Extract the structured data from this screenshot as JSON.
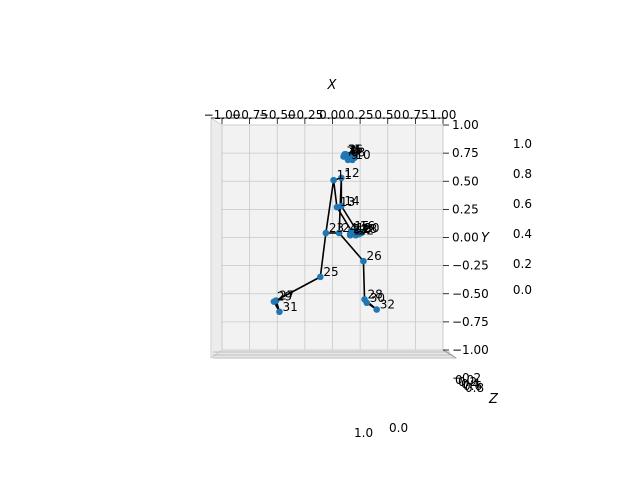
{
  "chart_data": {
    "type": "scatter",
    "projection": "3d",
    "xlabel": "X",
    "ylabel": "Y",
    "zlabel": "Z",
    "xlim": [
      -1.0,
      1.0
    ],
    "ylim": [
      -1.0,
      1.0
    ],
    "x_ticks": [
      "−1.00",
      "−0.75",
      "−0.50",
      "−0.25",
      "0.00",
      "0.25",
      "0.50",
      "0.75",
      "1.00"
    ],
    "y_ticks": [
      "1.00",
      "0.75",
      "0.50",
      "0.25",
      "0.00",
      "−0.25",
      "−0.50",
      "−0.75",
      "−1.00"
    ],
    "z_ticks_partial": [
      "1.0",
      "0.8",
      "0.6",
      "0.4",
      "0.2",
      "0.0"
    ],
    "z_ticks_cluster": [
      "−0.2",
      "0.0",
      "0.2",
      "0.4",
      "0.6",
      "0.8"
    ],
    "stray_labels": [
      "1.0",
      "0.0"
    ],
    "grid": true,
    "marker_color": "#1f77b4",
    "line_color": "#000000",
    "points": [
      {
        "id": "0",
        "x": 0.14,
        "y": 0.71
      },
      {
        "id": "1",
        "x": 0.13,
        "y": 0.73
      },
      {
        "id": "2",
        "x": 0.12,
        "y": 0.74
      },
      {
        "id": "3",
        "x": 0.11,
        "y": 0.74
      },
      {
        "id": "4",
        "x": 0.16,
        "y": 0.73
      },
      {
        "id": "5",
        "x": 0.17,
        "y": 0.74
      },
      {
        "id": "6",
        "x": 0.18,
        "y": 0.74
      },
      {
        "id": "7",
        "x": 0.1,
        "y": 0.72
      },
      {
        "id": "8",
        "x": 0.2,
        "y": 0.71
      },
      {
        "id": "9",
        "x": 0.14,
        "y": 0.69
      },
      {
        "id": "10",
        "x": 0.18,
        "y": 0.69
      },
      {
        "id": "11",
        "x": 0.01,
        "y": 0.51
      },
      {
        "id": "12",
        "x": 0.08,
        "y": 0.53
      },
      {
        "id": "13",
        "x": 0.04,
        "y": 0.27
      },
      {
        "id": "14",
        "x": 0.08,
        "y": 0.28
      },
      {
        "id": "15",
        "x": 0.17,
        "y": 0.06
      },
      {
        "id": "16",
        "x": 0.22,
        "y": 0.06
      },
      {
        "id": "17",
        "x": 0.16,
        "y": 0.02
      },
      {
        "id": "18",
        "x": 0.24,
        "y": 0.03
      },
      {
        "id": "19",
        "x": 0.19,
        "y": 0.04
      },
      {
        "id": "20",
        "x": 0.26,
        "y": 0.04
      },
      {
        "id": "21",
        "x": 0.16,
        "y": 0.03
      },
      {
        "id": "22",
        "x": 0.21,
        "y": 0.02
      },
      {
        "id": "23",
        "x": -0.06,
        "y": 0.04
      },
      {
        "id": "24",
        "x": 0.06,
        "y": 0.04
      },
      {
        "id": "25",
        "x": -0.11,
        "y": -0.35
      },
      {
        "id": "26",
        "x": 0.28,
        "y": -0.21
      },
      {
        "id": "27",
        "x": -0.51,
        "y": -0.56
      },
      {
        "id": "28",
        "x": 0.29,
        "y": -0.55
      },
      {
        "id": "29",
        "x": -0.53,
        "y": -0.57
      },
      {
        "id": "30",
        "x": 0.31,
        "y": -0.58
      },
      {
        "id": "31",
        "x": -0.48,
        "y": -0.66
      },
      {
        "id": "32",
        "x": 0.4,
        "y": -0.64
      }
    ],
    "edges": [
      [
        0,
        1
      ],
      [
        1,
        2
      ],
      [
        2,
        3
      ],
      [
        3,
        7
      ],
      [
        0,
        4
      ],
      [
        4,
        5
      ],
      [
        5,
        6
      ],
      [
        6,
        8
      ],
      [
        9,
        10
      ],
      [
        11,
        12
      ],
      [
        11,
        13
      ],
      [
        13,
        15
      ],
      [
        15,
        17
      ],
      [
        15,
        19
      ],
      [
        15,
        21
      ],
      [
        17,
        19
      ],
      [
        12,
        14
      ],
      [
        14,
        16
      ],
      [
        16,
        18
      ],
      [
        16,
        20
      ],
      [
        16,
        22
      ],
      [
        18,
        20
      ],
      [
        11,
        23
      ],
      [
        12,
        24
      ],
      [
        23,
        24
      ],
      [
        23,
        25
      ],
      [
        25,
        27
      ],
      [
        27,
        29
      ],
      [
        29,
        31
      ],
      [
        27,
        31
      ],
      [
        24,
        26
      ],
      [
        26,
        28
      ],
      [
        28,
        30
      ],
      [
        30,
        32
      ],
      [
        28,
        32
      ]
    ]
  }
}
